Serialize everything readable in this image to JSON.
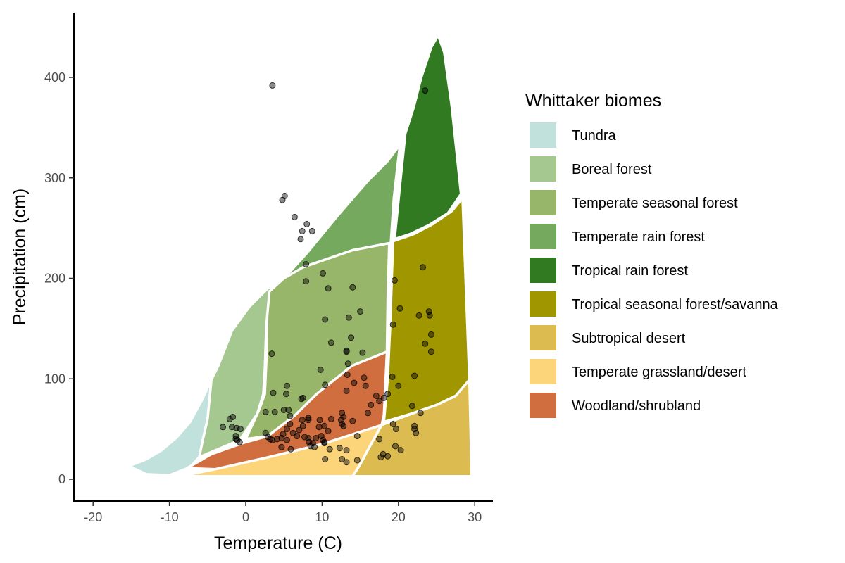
{
  "chart_data": {
    "type": "scatter",
    "title": "",
    "xlabel": "Temperature (C)",
    "ylabel": "Precipitation (cm)",
    "xlim": [
      -22,
      33
    ],
    "ylim": [
      -20,
      470
    ],
    "x_ticks": [
      -20,
      -10,
      0,
      10,
      20,
      30
    ],
    "y_ticks": [
      0,
      100,
      200,
      300,
      400
    ],
    "x_tick_labels": [
      "-20",
      "-10",
      "0",
      "10",
      "20",
      "30"
    ],
    "y_tick_labels": [
      "0",
      "100",
      "200",
      "300",
      "400"
    ],
    "grid": false,
    "legend": {
      "title": "Whittaker biomes",
      "placement": "right",
      "entries": [
        {
          "label": "Tundra",
          "color": "#C1E1DD"
        },
        {
          "label": "Boreal forest",
          "color": "#A5C790"
        },
        {
          "label": "Temperate seasonal forest",
          "color": "#97B669"
        },
        {
          "label": "Temperate rain forest",
          "color": "#75A95E"
        },
        {
          "label": "Tropical rain forest",
          "color": "#317A22"
        },
        {
          "label": "Tropical seasonal forest/savanna",
          "color": "#A09700"
        },
        {
          "label": "Subtropical desert",
          "color": "#DCBB50"
        },
        {
          "label": "Temperate grassland/desert",
          "color": "#FCD57A"
        },
        {
          "label": "Woodland/shrubland",
          "color": "#D16E3F"
        }
      ]
    },
    "biome_polygons": [
      {
        "biome": "Tundra",
        "points": [
          [
            -15.3,
            13
          ],
          [
            -13,
            20
          ],
          [
            -11,
            29
          ],
          [
            -9,
            42
          ],
          [
            -7.3,
            57
          ],
          [
            -5.8,
            78
          ],
          [
            -4.5,
            99
          ],
          [
            -5,
            60
          ],
          [
            -5.6,
            40
          ],
          [
            -6.1,
            22
          ],
          [
            -7.3,
            12
          ],
          [
            -10,
            4
          ],
          [
            -13,
            5
          ]
        ]
      },
      {
        "biome": "Boreal forest",
        "points": [
          [
            -4.5,
            99
          ],
          [
            -3.6,
            113
          ],
          [
            -1.8,
            148
          ],
          [
            0.5,
            172
          ],
          [
            3.4,
            194
          ],
          [
            2.7,
            155
          ],
          [
            2.5,
            110
          ],
          [
            2.3,
            85
          ],
          [
            1.5,
            65
          ],
          [
            -0.8,
            39
          ],
          [
            -6.1,
            22
          ],
          [
            -5.6,
            40
          ],
          [
            -5,
            60
          ]
        ]
      },
      {
        "biome": "Temperate rain forest",
        "points": [
          [
            3.8,
            179
          ],
          [
            5,
            200
          ],
          [
            8,
            225
          ],
          [
            12,
            262
          ],
          [
            16,
            297
          ],
          [
            18.5,
            316
          ],
          [
            20.2,
            333
          ],
          [
            19.4,
            280
          ],
          [
            19,
            235
          ],
          [
            14,
            228
          ],
          [
            7.5,
            211
          ]
        ]
      },
      {
        "biome": "Tropical rain forest",
        "points": [
          [
            19.5,
            239
          ],
          [
            20.3,
            300
          ],
          [
            20.9,
            344
          ],
          [
            22,
            370
          ],
          [
            23,
            400
          ],
          [
            24.3,
            430
          ],
          [
            25.2,
            442
          ],
          [
            26,
            425
          ],
          [
            27,
            370
          ],
          [
            28.2,
            284
          ],
          [
            26.5,
            265
          ],
          [
            24,
            253
          ],
          [
            21.5,
            244
          ]
        ]
      },
      {
        "biome": "Temperate seasonal forest",
        "points": [
          [
            3.1,
            187
          ],
          [
            5,
            200
          ],
          [
            7.5,
            211
          ],
          [
            14,
            228
          ],
          [
            18.8,
            235
          ],
          [
            18.6,
            180
          ],
          [
            18.5,
            127
          ],
          [
            14,
            113
          ],
          [
            9.3,
            85
          ],
          [
            6.5,
            64
          ],
          [
            2.9,
            43
          ],
          [
            0,
            40
          ],
          [
            1.8,
            70
          ],
          [
            2.5,
            85
          ],
          [
            2.7,
            120
          ],
          [
            2.8,
            162
          ]
        ]
      },
      {
        "biome": "Tropical seasonal forest/savanna",
        "points": [
          [
            19.3,
            237
          ],
          [
            22,
            244
          ],
          [
            24.5,
            254
          ],
          [
            27,
            267
          ],
          [
            28.4,
            280
          ],
          [
            28.8,
            200
          ],
          [
            29.3,
            99
          ],
          [
            27.5,
            83
          ],
          [
            25,
            74
          ],
          [
            22,
            66
          ],
          [
            18.1,
            57
          ],
          [
            18.6,
            100
          ],
          [
            18.9,
            150
          ]
        ]
      },
      {
        "biome": "Subtropical desert",
        "points": [
          [
            14,
            3
          ],
          [
            15,
            15
          ],
          [
            16.7,
            39
          ],
          [
            17.8,
            54
          ],
          [
            22,
            66
          ],
          [
            25,
            74
          ],
          [
            27.5,
            83
          ],
          [
            29.3,
            99
          ],
          [
            29.6,
            3
          ]
        ]
      },
      {
        "biome": "Temperate grassland/desert",
        "points": [
          [
            -8.5,
            3
          ],
          [
            -4,
            10
          ],
          [
            3,
            22
          ],
          [
            10,
            35
          ],
          [
            17.8,
            54
          ],
          [
            16.7,
            39
          ],
          [
            15,
            15
          ],
          [
            14,
            3
          ]
        ]
      },
      {
        "biome": "Woodland/shrubland",
        "points": [
          [
            -7.7,
            11
          ],
          [
            -4.5,
            25
          ],
          [
            -0.4,
            36
          ],
          [
            2.9,
            43
          ],
          [
            6.5,
            64
          ],
          [
            9.3,
            85
          ],
          [
            13.9,
            113
          ],
          [
            18.5,
            127
          ],
          [
            18.3,
            95
          ],
          [
            18.1,
            64
          ],
          [
            17.8,
            54
          ],
          [
            10,
            35
          ],
          [
            3,
            22
          ],
          [
            -4,
            10
          ]
        ]
      }
    ],
    "points": [
      [
        3.5,
        392
      ],
      [
        23.5,
        387
      ],
      [
        5.1,
        282
      ],
      [
        4.8,
        278
      ],
      [
        6.4,
        261
      ],
      [
        8.0,
        254
      ],
      [
        7.4,
        247
      ],
      [
        8.7,
        247
      ],
      [
        7.2,
        239
      ],
      [
        7.9,
        214
      ],
      [
        7.9,
        197
      ],
      [
        10.1,
        205
      ],
      [
        23.2,
        211
      ],
      [
        10.8,
        190
      ],
      [
        14.0,
        191
      ],
      [
        19.5,
        198
      ],
      [
        3.4,
        125
      ],
      [
        20.2,
        170
      ],
      [
        22.7,
        163
      ],
      [
        24.0,
        167
      ],
      [
        24.1,
        163
      ],
      [
        19.3,
        154
      ],
      [
        24.3,
        144
      ],
      [
        23.5,
        135
      ],
      [
        24.3,
        127
      ],
      [
        10.4,
        159
      ],
      [
        13.5,
        161
      ],
      [
        15.0,
        167
      ],
      [
        13.8,
        141
      ],
      [
        11.2,
        136
      ],
      [
        13.2,
        128
      ],
      [
        13.2,
        127
      ],
      [
        15.3,
        126
      ],
      [
        13.4,
        115
      ],
      [
        9.8,
        109
      ],
      [
        13.3,
        104
      ],
      [
        10.4,
        94
      ],
      [
        15.5,
        101
      ],
      [
        14.2,
        96
      ],
      [
        15.7,
        93
      ],
      [
        19.2,
        102
      ],
      [
        22.1,
        103
      ],
      [
        20.0,
        93
      ],
      [
        13.2,
        88
      ],
      [
        17.5,
        78
      ],
      [
        17.1,
        83
      ],
      [
        16.4,
        74
      ],
      [
        18.1,
        81
      ],
      [
        18.6,
        85
      ],
      [
        16.0,
        66
      ],
      [
        3.6,
        86
      ],
      [
        5.4,
        93
      ],
      [
        5.3,
        85
      ],
      [
        7.3,
        80
      ],
      [
        7.5,
        81
      ],
      [
        -1.8,
        52
      ],
      [
        -1.7,
        62
      ],
      [
        -2.1,
        60
      ],
      [
        -3.0,
        52
      ],
      [
        -1.2,
        51
      ],
      [
        -0.7,
        50
      ],
      [
        -1.3,
        43
      ],
      [
        -1.3,
        40
      ],
      [
        -1.1,
        39
      ],
      [
        -0.8,
        37
      ],
      [
        2.6,
        67
      ],
      [
        3.8,
        67
      ],
      [
        5.0,
        69
      ],
      [
        5.6,
        69
      ],
      [
        5.8,
        63
      ],
      [
        2.6,
        46
      ],
      [
        2.9,
        42
      ],
      [
        3.2,
        40
      ],
      [
        3.5,
        39
      ],
      [
        4.1,
        40
      ],
      [
        4.7,
        41
      ],
      [
        4.9,
        45
      ],
      [
        5.4,
        50
      ],
      [
        5.8,
        55
      ],
      [
        6.2,
        46
      ],
      [
        6.7,
        43
      ],
      [
        7.0,
        49
      ],
      [
        7.5,
        53
      ],
      [
        7.4,
        59
      ],
      [
        8.2,
        59
      ],
      [
        8.2,
        61
      ],
      [
        7.7,
        42
      ],
      [
        8.2,
        41
      ],
      [
        8.3,
        37
      ],
      [
        9.2,
        41
      ],
      [
        9.6,
        52
      ],
      [
        10.3,
        53
      ],
      [
        9.9,
        43
      ],
      [
        10.3,
        36
      ],
      [
        10.1,
        39
      ],
      [
        10.3,
        37
      ],
      [
        10.8,
        48
      ],
      [
        9.7,
        59
      ],
      [
        11.2,
        60
      ],
      [
        12.5,
        59
      ],
      [
        12.6,
        55
      ],
      [
        12.8,
        53
      ],
      [
        12.8,
        62
      ],
      [
        12.6,
        66
      ],
      [
        14.0,
        58
      ],
      [
        5.4,
        39
      ],
      [
        5.9,
        30
      ],
      [
        4.7,
        32
      ],
      [
        8.8,
        36
      ],
      [
        8.5,
        33
      ],
      [
        9.0,
        32
      ],
      [
        11.0,
        30
      ],
      [
        10.4,
        20
      ],
      [
        12.3,
        31
      ],
      [
        13.2,
        29
      ],
      [
        12.6,
        20
      ],
      [
        13.2,
        17
      ],
      [
        14.6,
        19
      ],
      [
        14.6,
        43
      ],
      [
        17.5,
        40
      ],
      [
        18.0,
        25
      ],
      [
        17.7,
        22
      ],
      [
        18.6,
        23
      ],
      [
        19.6,
        33
      ],
      [
        20.3,
        29
      ],
      [
        19.3,
        55
      ],
      [
        19.7,
        50
      ],
      [
        22.1,
        50
      ],
      [
        22.1,
        53
      ],
      [
        22.3,
        46
      ],
      [
        22.9,
        66
      ],
      [
        21.8,
        73
      ]
    ]
  }
}
